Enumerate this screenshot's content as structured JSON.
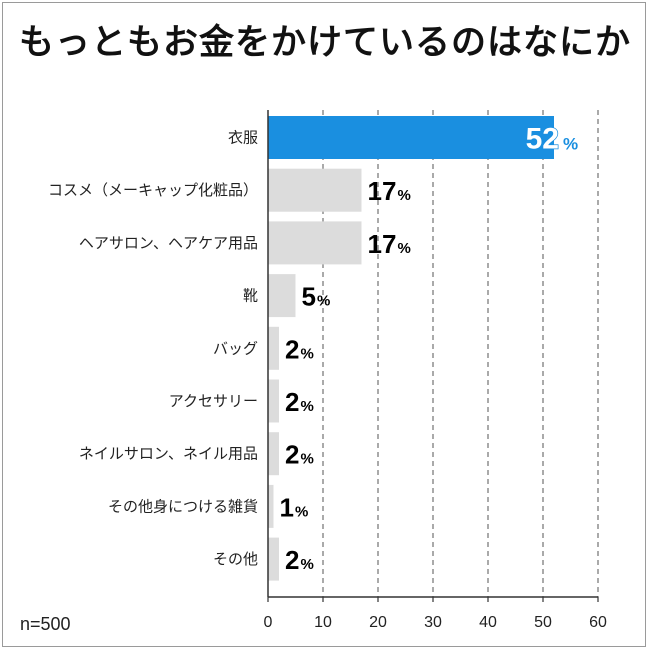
{
  "title": "もっともお金をかけているのはなにか",
  "sample_note": "n=500",
  "colors": {
    "highlight": "#1a8fe0",
    "bar": "#dcdcdc",
    "gridline": "#555555",
    "axis": "#333333"
  },
  "chart_data": {
    "type": "bar",
    "orientation": "horizontal",
    "title": "もっともお金をかけているのはなにか",
    "categories": [
      "衣服",
      "コスメ（メーキャップ化粧品）",
      "ヘアサロン、ヘアケア用品",
      "靴",
      "バッグ",
      "アクセサリー",
      "ネイルサロン、ネイル用品",
      "その他身につける雑貨",
      "その他"
    ],
    "values": [
      52,
      17,
      17,
      5,
      2,
      2,
      2,
      1,
      2
    ],
    "value_suffix": "%",
    "highlight_index": 0,
    "xlim": [
      0,
      60
    ],
    "xticks": [
      0,
      10,
      20,
      30,
      40,
      50,
      60
    ],
    "grid": true,
    "xlabel": "",
    "ylabel": ""
  }
}
